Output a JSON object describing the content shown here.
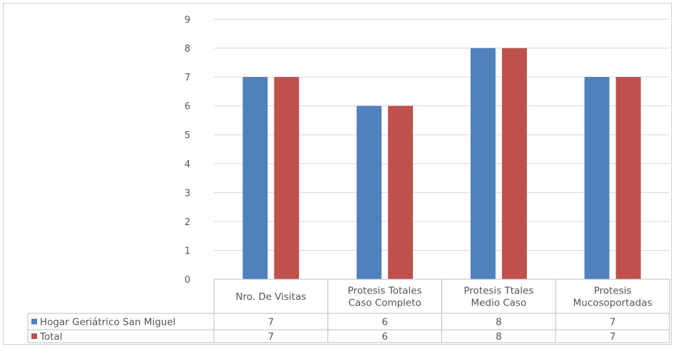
{
  "chart_data": {
    "type": "bar",
    "categories": [
      [
        "Nro. De Visitas"
      ],
      [
        "Protesis Totales",
        "Caso Completo"
      ],
      [
        "Protesis Ttales",
        "Medio Caso"
      ],
      [
        "Protesis",
        "Mucosoportadas"
      ]
    ],
    "series": [
      {
        "name": "Hogar Geriátrico San Miguel",
        "color": "#4F81BD",
        "values": [
          7,
          6,
          8,
          7
        ]
      },
      {
        "name": "Total",
        "color": "#C0504D",
        "values": [
          7,
          6,
          8,
          7
        ]
      }
    ],
    "ylim": [
      0,
      9
    ],
    "yticks": [
      0,
      1,
      2,
      3,
      4,
      5,
      6,
      7,
      8,
      9
    ],
    "grid": true,
    "legend": "data-table"
  }
}
